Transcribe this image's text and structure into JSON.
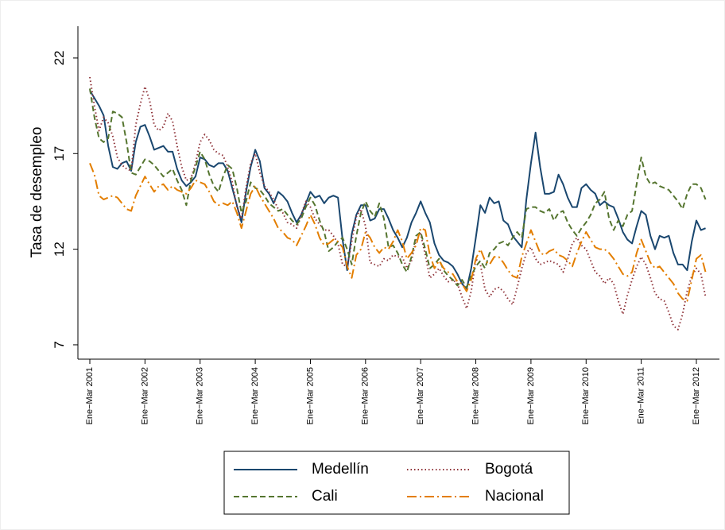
{
  "chart_data": {
    "type": "line",
    "y_label": "Tasa de desempleo",
    "categories": [
      "Ene−Mar 2001",
      null,
      null,
      null,
      null,
      null,
      null,
      null,
      null,
      null,
      null,
      null,
      "Ene−Mar 2002",
      null,
      null,
      null,
      null,
      null,
      null,
      null,
      null,
      null,
      null,
      null,
      "Ene−Mar 2003",
      null,
      null,
      null,
      null,
      null,
      null,
      null,
      null,
      null,
      null,
      null,
      "Ene−Mar 2004",
      null,
      null,
      null,
      null,
      null,
      null,
      null,
      null,
      null,
      null,
      null,
      "Ene−Mar 2005",
      null,
      null,
      null,
      null,
      null,
      null,
      null,
      null,
      null,
      null,
      null,
      "Ene−Mar 2006",
      null,
      null,
      null,
      null,
      null,
      null,
      null,
      null,
      null,
      null,
      null,
      "Ene−Mar 2007",
      null,
      null,
      null,
      null,
      null,
      null,
      null,
      null,
      null,
      null,
      null,
      "Ene−Mar 2008",
      null,
      null,
      null,
      null,
      null,
      null,
      null,
      null,
      null,
      null,
      null,
      "Ene−Mar 2009",
      null,
      null,
      null,
      null,
      null,
      null,
      null,
      null,
      null,
      null,
      null,
      "Ene−Mar 2010",
      null,
      null,
      null,
      null,
      null,
      null,
      null,
      null,
      null,
      null,
      null,
      "Ene−Mar 2011",
      null,
      null,
      null,
      null,
      null,
      null,
      null,
      null,
      null,
      null,
      null,
      "Ene−Mar 2012",
      null,
      null
    ],
    "series": [
      {
        "name": "Medellín",
        "color": "#1a476f",
        "style": "solid",
        "values": [
          20.3,
          19.9,
          19.5,
          19.0,
          17.4,
          16.3,
          16.2,
          16.5,
          16.6,
          16.1,
          17.6,
          18.4,
          18.5,
          17.9,
          17.2,
          17.3,
          17.4,
          17.1,
          17.1,
          16.2,
          15.6,
          15.3,
          15.5,
          15.8,
          16.8,
          16.7,
          16.4,
          16.3,
          16.5,
          16.5,
          16.1,
          15.2,
          14.3,
          13.4,
          15.0,
          16.3,
          17.2,
          16.6,
          15.2,
          14.9,
          14.4,
          15.0,
          14.8,
          14.5,
          13.9,
          13.4,
          13.8,
          14.4,
          15.0,
          14.7,
          14.8,
          14.4,
          14.7,
          14.8,
          14.7,
          12.5,
          10.9,
          12.8,
          13.8,
          14.3,
          14.3,
          13.5,
          13.6,
          14.1,
          14.1,
          13.6,
          13.0,
          12.6,
          12.1,
          12.6,
          13.4,
          13.9,
          14.5,
          13.9,
          13.4,
          12.3,
          11.7,
          11.4,
          11.3,
          11.1,
          10.7,
          10.2,
          9.9,
          11.0,
          12.6,
          14.3,
          13.9,
          14.7,
          14.4,
          14.5,
          13.5,
          13.3,
          12.7,
          12.4,
          12.1,
          14.6,
          16.5,
          18.1,
          16.3,
          14.9,
          14.9,
          15.0,
          15.9,
          15.4,
          14.7,
          14.2,
          14.2,
          15.2,
          15.4,
          15.1,
          14.9,
          14.3,
          14.5,
          14.3,
          14.2,
          13.6,
          12.9,
          12.5,
          12.3,
          13.2,
          14.0,
          13.8,
          12.7,
          12.0,
          12.7,
          12.6,
          12.7,
          11.8,
          11.2,
          11.2,
          10.9,
          12.4,
          13.5,
          13.0,
          13.1
        ]
      },
      {
        "name": "Bogotá",
        "color": "#90353b",
        "style": "dot",
        "values": [
          21.0,
          19.5,
          18.2,
          18.9,
          18.6,
          17.9,
          16.8,
          16.4,
          16.2,
          16.1,
          18.5,
          19.6,
          20.5,
          19.8,
          18.5,
          18.2,
          18.4,
          19.1,
          18.7,
          17.4,
          16.3,
          15.6,
          15.7,
          16.5,
          17.6,
          18.0,
          17.7,
          17.2,
          17.0,
          16.9,
          16.3,
          15.5,
          14.2,
          13.6,
          15.2,
          16.5,
          17.0,
          16.0,
          15.3,
          15.0,
          14.6,
          14.1,
          13.9,
          13.4,
          13.3,
          13.1,
          13.8,
          14.5,
          14.2,
          13.6,
          13.3,
          13.0,
          13.0,
          12.7,
          12.3,
          11.2,
          11.1,
          12.4,
          13.7,
          14.1,
          13.2,
          11.3,
          11.2,
          11.1,
          11.5,
          11.4,
          11.7,
          11.6,
          11.6,
          11.0,
          11.4,
          12.5,
          12.8,
          11.7,
          10.5,
          10.7,
          11.0,
          10.6,
          10.3,
          10.4,
          10.2,
          9.5,
          8.9,
          9.8,
          11.5,
          11.2,
          9.9,
          9.5,
          9.9,
          10.0,
          9.8,
          9.4,
          9.1,
          10.0,
          11.0,
          11.8,
          12.1,
          11.5,
          11.2,
          11.3,
          11.4,
          11.3,
          11.2,
          10.8,
          11.5,
          12.3,
          12.6,
          12.2,
          12.0,
          11.4,
          10.8,
          10.6,
          10.2,
          10.5,
          10.2,
          9.3,
          8.6,
          9.6,
          10.4,
          11.1,
          11.6,
          11.2,
          10.5,
          9.7,
          9.4,
          9.3,
          8.7,
          8.0,
          7.8,
          8.6,
          9.8,
          10.6,
          11.0,
          10.7,
          9.5
        ]
      },
      {
        "name": "Cali",
        "color": "#55752f",
        "style": "dash",
        "values": [
          20.4,
          18.9,
          17.8,
          17.6,
          17.8,
          19.2,
          19.1,
          18.9,
          17.6,
          16.0,
          15.9,
          16.3,
          16.7,
          16.6,
          16.4,
          16.1,
          15.8,
          16.0,
          16.2,
          15.6,
          15.1,
          14.3,
          15.6,
          16.3,
          17.1,
          16.7,
          15.9,
          15.3,
          15.0,
          15.8,
          16.4,
          16.2,
          15.2,
          13.9,
          14.5,
          15.5,
          15.2,
          15.1,
          14.8,
          14.4,
          14.2,
          14.0,
          14.1,
          13.8,
          13.5,
          13.3,
          13.6,
          14.2,
          14.7,
          14.3,
          13.5,
          12.9,
          11.9,
          12.1,
          12.4,
          12.6,
          12.0,
          11.2,
          12.7,
          13.9,
          14.5,
          14.0,
          13.7,
          14.4,
          13.6,
          12.1,
          12.2,
          11.8,
          11.2,
          10.8,
          11.6,
          12.7,
          12.9,
          12.0,
          11.0,
          11.2,
          11.5,
          10.9,
          10.6,
          10.4,
          10.1,
          10.4,
          10.0,
          10.6,
          11.1,
          11.4,
          11.0,
          11.8,
          12.0,
          12.3,
          12.4,
          12.2,
          12.6,
          12.9,
          12.6,
          14.1,
          14.2,
          14.2,
          14.0,
          13.9,
          14.1,
          13.5,
          13.9,
          14.0,
          13.4,
          13.0,
          12.7,
          13.1,
          13.4,
          13.8,
          14.4,
          14.6,
          15.0,
          13.6,
          13.0,
          13.5,
          13.2,
          13.8,
          14.0,
          15.4,
          16.8,
          15.8,
          15.4,
          15.5,
          15.3,
          15.2,
          15.1,
          14.8,
          14.5,
          14.1,
          14.9,
          15.4,
          15.4,
          15.2,
          14.6
        ]
      },
      {
        "name": "Nacional",
        "color": "#e37e00",
        "style": "dashdot",
        "values": [
          16.5,
          15.9,
          14.8,
          14.6,
          14.7,
          14.8,
          14.7,
          14.4,
          14.1,
          14.0,
          14.8,
          15.3,
          15.8,
          15.4,
          15.0,
          15.3,
          15.4,
          15.1,
          15.3,
          15.1,
          15.0,
          14.9,
          15.2,
          15.6,
          15.5,
          15.4,
          15.0,
          14.5,
          14.3,
          14.4,
          14.3,
          14.5,
          13.9,
          13.1,
          14.0,
          14.9,
          15.3,
          14.8,
          14.4,
          14.0,
          13.6,
          13.1,
          12.9,
          12.6,
          12.5,
          12.2,
          12.7,
          13.2,
          13.8,
          13.3,
          12.6,
          12.2,
          12.3,
          12.5,
          12.4,
          12.1,
          11.1,
          10.5,
          11.7,
          12.0,
          12.9,
          12.6,
          12.1,
          11.8,
          12.1,
          12.0,
          12.4,
          13.0,
          12.4,
          11.5,
          11.8,
          12.2,
          13.1,
          13.0,
          11.7,
          11.0,
          11.4,
          11.0,
          10.8,
          10.7,
          10.3,
          10.2,
          9.8,
          10.4,
          11.5,
          12.0,
          11.4,
          11.2,
          11.6,
          11.6,
          11.3,
          10.9,
          10.6,
          10.5,
          11.6,
          12.3,
          13.0,
          12.4,
          11.8,
          11.7,
          11.9,
          12.0,
          11.7,
          11.6,
          11.4,
          11.1,
          11.8,
          12.4,
          12.9,
          12.5,
          12.1,
          12.0,
          12.0,
          11.8,
          11.5,
          11.1,
          10.7,
          10.6,
          10.8,
          11.8,
          12.5,
          11.9,
          11.3,
          11.0,
          11.1,
          10.8,
          10.5,
          10.2,
          9.7,
          9.4,
          9.3,
          10.4,
          11.5,
          11.7,
          10.8
        ]
      }
    ],
    "ylim": [
      6.25,
      23.66
    ],
    "yticks": [
      7,
      12,
      17,
      22
    ],
    "grid": false,
    "legend": "bottom"
  }
}
